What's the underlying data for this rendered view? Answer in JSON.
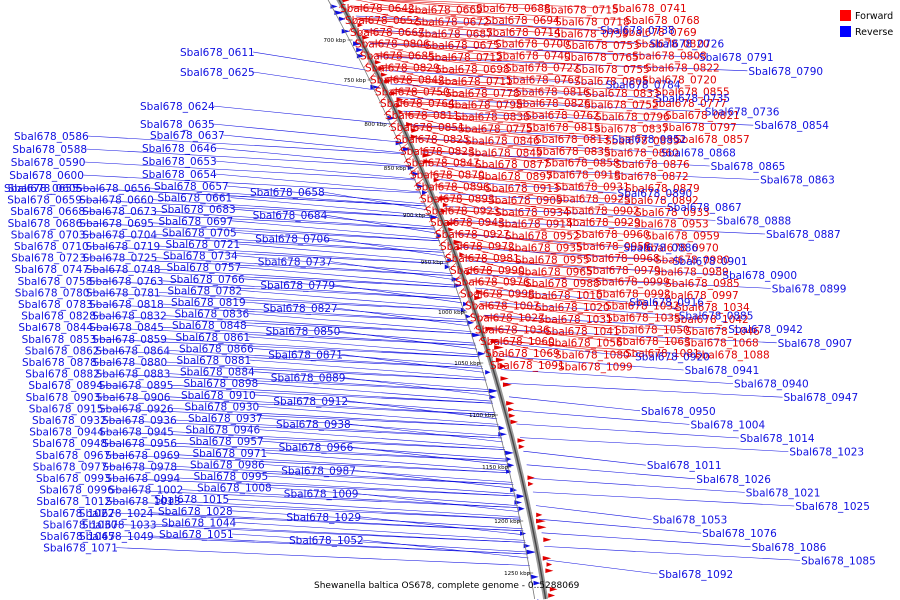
{
  "caption": "Shewanella baltica OS678, complete genome - 0..5288069",
  "colors": {
    "forward": "#e00000",
    "reverse": "#1010e0"
  },
  "legend": [
    {
      "label": "Forward",
      "color": "#ff0000"
    },
    {
      "label": "Reverse",
      "color": "#0000ff"
    }
  ],
  "ticks": [
    "700 kbp",
    "750 kbp",
    "800 kbp",
    "850 kbp",
    "900 kbp",
    "950 kbp",
    "1000 kbp",
    "1050 kbp",
    "1100 kbp",
    "1150 kbp",
    "1200 kbp",
    "1250 kbp"
  ],
  "reverse_labels": [
    "Sbal678_0586",
    "Sbal678_0588",
    "Sbal678_0590",
    "Sbal678_0600",
    "Sbal678_0605",
    "Sbal678_0611",
    "Sbal678_0624",
    "Sbal678_0625",
    "Sbal678_0635",
    "Sbal678_0637",
    "Sbal678_0646",
    "Sbal678_0653",
    "Sbal678_0654",
    "Sbal678_0655",
    "Sbal678_0656",
    "Sbal678_0657",
    "Sbal678_0658",
    "Sbal678_0659",
    "Sbal678_0660",
    "Sbal678_0661",
    "Sbal678_0668",
    "Sbal678_0673",
    "Sbal678_0683",
    "Sbal678_0684",
    "Sbal678_0686",
    "Sbal678_0695",
    "Sbal678_0697",
    "Sbal678_0703",
    "Sbal678_0704",
    "Sbal678_0705",
    "Sbal678_0706",
    "Sbal678_0710",
    "Sbal678_0719",
    "Sbal678_0721",
    "Sbal678_0723",
    "Sbal678_0725",
    "Sbal678_0734",
    "Sbal678_0737",
    "Sbal678_0747",
    "Sbal678_0748",
    "Sbal678_0757",
    "Sbal678_0758",
    "Sbal678_0763",
    "Sbal678_0766",
    "Sbal678_0779",
    "Sbal678_0780",
    "Sbal678_0781",
    "Sbal678_0782",
    "Sbal678_0783",
    "Sbal678_0818",
    "Sbal678_0819",
    "Sbal678_0827",
    "Sbal678_0828",
    "Sbal678_0832",
    "Sbal678_0836",
    "Sbal678_0844",
    "Sbal678_0845",
    "Sbal678_0848",
    "Sbal678_0850",
    "Sbal678_0853",
    "Sbal678_0859",
    "Sbal678_0861",
    "Sbal678_0862",
    "Sbal678_0864",
    "Sbal678_0866",
    "Sbal678_0871",
    "Sbal678_0878",
    "Sbal678_0880",
    "Sbal678_0881",
    "Sbal678_0882",
    "Sbal678_0883",
    "Sbal678_0884",
    "Sbal678_0889",
    "Sbal678_0894",
    "Sbal678_0895",
    "Sbal678_0898",
    "Sbal678_0903",
    "Sbal678_0906",
    "Sbal678_0910",
    "Sbal678_0912",
    "Sbal678_0915",
    "Sbal678_0926",
    "Sbal678_0930",
    "Sbal678_0932",
    "Sbal678_0936",
    "Sbal678_0937",
    "Sbal678_0938",
    "Sbal678_0944",
    "Sbal678_0945",
    "Sbal678_0946",
    "Sbal678_0948",
    "Sbal678_0956",
    "Sbal678_0957",
    "Sbal678_0966",
    "Sbal678_0967",
    "Sbal678_0969",
    "Sbal678_0971",
    "Sbal678_0977",
    "Sbal678_0978",
    "Sbal678_0986",
    "Sbal678_0987",
    "Sbal678_0993",
    "Sbal678_0994",
    "Sbal678_0995",
    "Sbal678_0996",
    "Sbal678_1002",
    "Sbal678_1008",
    "Sbal678_1009",
    "Sbal678_1012",
    "Sbal678_1013",
    "Sbal678_1015",
    "Sbal678_1022",
    "Sbal678_1024",
    "Sbal678_1028",
    "Sbal678_1029",
    "Sbal678_1030",
    "Sbal678_1033",
    "Sbal678_1044",
    "Sbal678_1045",
    "Sbal678_1049",
    "Sbal678_1051",
    "Sbal678_1052",
    "Sbal678_1071"
  ],
  "forward_labels": [
    "Sbal678_0642",
    "Sbal678_0669",
    "Sbal678_0688",
    "Sbal678_0715",
    "Sbal678_0741",
    "Sbal678_0652",
    "Sbal678_0672",
    "Sbal678_0694",
    "Sbal678_0718",
    "Sbal678_0768",
    "Sbal678_0667",
    "Sbal678_0687",
    "Sbal678_0714",
    "Sbal678_0759",
    "Sbal678_0769",
    "Sbal678_0806",
    "Sbal678_0675",
    "Sbal678_0700",
    "Sbal678_0753",
    "Sbal678_0820",
    "Sbal678_0685",
    "Sbal678_0712",
    "Sbal678_0740",
    "Sbal678_0765",
    "Sbal678_0808",
    "Sbal678_0829",
    "Sbal678_0698",
    "Sbal678_0722",
    "Sbal678_0755",
    "Sbal678_0822",
    "Sbal678_0842",
    "Sbal678_0711",
    "Sbal678_0767",
    "Sbal678_0805",
    "Sbal678_0720",
    "Sbal678_0750",
    "Sbal678_0778",
    "Sbal678_0816",
    "Sbal678_0833",
    "Sbal678_0855",
    "Sbal678_0764",
    "Sbal678_0798",
    "Sbal678_0826",
    "Sbal678_0752",
    "Sbal678_0777",
    "Sbal678_0811",
    "Sbal678_0838",
    "Sbal678_0762",
    "Sbal678_0796",
    "Sbal678_0821",
    "Sbal678_0851",
    "Sbal678_0775",
    "Sbal678_0815",
    "Sbal678_0837",
    "Sbal678_0797",
    "Sbal678_0825",
    "Sbal678_0846",
    "Sbal678_0813",
    "Sbal678_0839",
    "Sbal678_0857",
    "Sbal678_0823",
    "Sbal678_0849",
    "Sbal678_0835",
    "Sbal678_0860",
    "Sbal678_0847",
    "Sbal678_0877",
    "Sbal678_0858",
    "Sbal678_0876",
    "Sbal678_0870",
    "Sbal678_0897",
    "Sbal678_0918",
    "Sbal678_0872",
    "Sbal678_0896",
    "Sbal678_0913",
    "Sbal678_0931",
    "Sbal678_0879",
    "Sbal678_0893",
    "Sbal678_0909",
    "Sbal678_0925",
    "Sbal678_0892",
    "Sbal678_0923",
    "Sbal678_0934",
    "Sbal678_0902",
    "Sbal678_0933",
    "Sbal678_0943",
    "Sbal678_0914",
    "Sbal678_0929",
    "Sbal678_0953",
    "Sbal678_0927",
    "Sbal678_0952",
    "Sbal678_0960",
    "Sbal678_0959",
    "Sbal678_0972",
    "Sbal678_0935",
    "Sbal678_0958",
    "Sbal678_0970",
    "Sbal678_0981",
    "Sbal678_0955",
    "Sbal678_0968",
    "Sbal678_0980",
    "Sbal678_0990",
    "Sbal678_0965",
    "Sbal678_0979",
    "Sbal678_0989",
    "Sbal678_0976",
    "Sbal678_0988",
    "Sbal678_0999",
    "Sbal678_0985",
    "Sbal678_0998",
    "Sbal678_1010",
    "Sbal678_0992",
    "Sbal678_0997",
    "Sbal678_1007",
    "Sbal678_1020",
    "Sbal678_1032",
    "Sbal678_1034",
    "Sbal678_1027",
    "Sbal678_1031",
    "Sbal678_1035",
    "Sbal678_1042",
    "Sbal678_1036",
    "Sbal678_1041",
    "Sbal678_1050",
    "Sbal678_1046",
    "Sbal678_1060",
    "Sbal678_1056",
    "Sbal678_1063",
    "Sbal678_1068",
    "Sbal678_1069",
    "Sbal678_1080",
    "Sbal678_1081",
    "Sbal678_1088",
    "Sbal678_1091",
    "Sbal678_1099"
  ],
  "reverse_right_labels": [
    "Sbal678_0738",
    "Sbal678_0726",
    "Sbal678_0791",
    "Sbal678_0790",
    "Sbal678_0784",
    "Sbal678_0735",
    "Sbal678_0736",
    "Sbal678_0854",
    "Sbal678_0852",
    "Sbal678_0868",
    "Sbal678_0865",
    "Sbal678_0863",
    "Sbal678_0890",
    "Sbal678_0867",
    "Sbal678_0888",
    "Sbal678_0887",
    "Sbal678_0886",
    "Sbal678_0901",
    "Sbal678_0900",
    "Sbal678_0899",
    "Sbal678_0916",
    "Sbal678_0885",
    "Sbal678_0942",
    "Sbal678_0907",
    "Sbal678_0920",
    "Sbal678_0941",
    "Sbal678_0940",
    "Sbal678_0947",
    "Sbal678_0950",
    "Sbal678_1004",
    "Sbal678_1014",
    "Sbal678_1023",
    "Sbal678_1011",
    "Sbal678_1026",
    "Sbal678_1021",
    "Sbal678_1025",
    "Sbal678_1053",
    "Sbal678_1076",
    "Sbal678_1086",
    "Sbal678_1085",
    "Sbal678_1092"
  ]
}
